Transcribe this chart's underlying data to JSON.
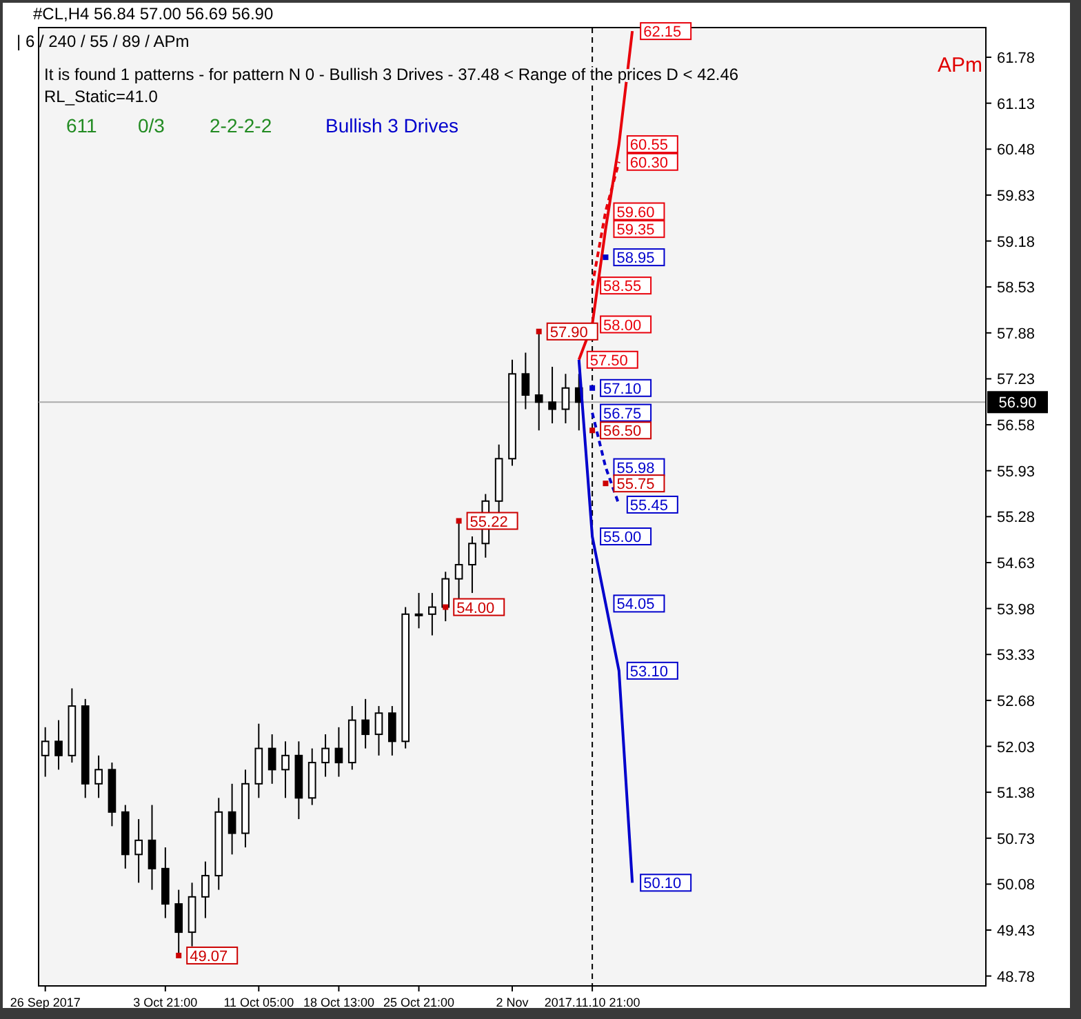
{
  "chart_data": {
    "type": "candlestick",
    "title": "#CL,H4  56.84 57.00 56.69 56.90",
    "subtitle": "| 6 / 240 / 55 / 89 / APm",
    "categories": [
      "26 Sep 2017",
      null,
      null,
      null,
      null,
      null,
      null,
      null,
      null,
      "3 Oct 21:00",
      null,
      null,
      null,
      null,
      null,
      null,
      "11 Oct 05:00",
      null,
      null,
      null,
      null,
      null,
      "18 Oct 13:00",
      null,
      null,
      null,
      null,
      null,
      "25 Oct 21:00",
      null,
      null,
      null,
      null,
      null,
      null,
      "2 Nov",
      null,
      null,
      null,
      null,
      null,
      "2017.11.10 21:00",
      null,
      null,
      null,
      null,
      null,
      null,
      null,
      null,
      null,
      null,
      null,
      null,
      null,
      null,
      null,
      null,
      null,
      null,
      null,
      null,
      null,
      null,
      null,
      null,
      null,
      null,
      null,
      null,
      null
    ],
    "ohlc": [
      [
        51.9,
        52.3,
        51.6,
        52.1
      ],
      [
        52.1,
        52.4,
        51.7,
        51.9
      ],
      [
        51.9,
        52.85,
        51.8,
        52.6
      ],
      [
        52.6,
        52.7,
        51.3,
        51.5
      ],
      [
        51.5,
        51.9,
        51.3,
        51.7
      ],
      [
        51.7,
        51.8,
        50.9,
        51.1
      ],
      [
        51.1,
        51.2,
        50.3,
        50.5
      ],
      [
        50.5,
        51.0,
        50.1,
        50.7
      ],
      [
        50.7,
        51.2,
        50.0,
        50.3
      ],
      [
        50.3,
        50.6,
        49.6,
        49.8
      ],
      [
        49.8,
        50.0,
        49.07,
        49.4
      ],
      [
        49.4,
        50.1,
        49.2,
        49.9
      ],
      [
        49.9,
        50.4,
        49.6,
        50.2
      ],
      [
        50.2,
        51.3,
        50.0,
        51.1
      ],
      [
        51.1,
        51.5,
        50.5,
        50.8
      ],
      [
        50.8,
        51.7,
        50.6,
        51.5
      ],
      [
        51.5,
        52.35,
        51.3,
        52.0
      ],
      [
        52.0,
        52.2,
        51.5,
        51.7
      ],
      [
        51.7,
        52.1,
        51.3,
        51.9
      ],
      [
        51.9,
        52.1,
        51.0,
        51.3
      ],
      [
        51.3,
        52.0,
        51.2,
        51.8
      ],
      [
        51.8,
        52.2,
        51.6,
        52.0
      ],
      [
        52.0,
        52.3,
        51.6,
        51.8
      ],
      [
        51.8,
        52.6,
        51.7,
        52.4
      ],
      [
        52.4,
        52.7,
        52.0,
        52.2
      ],
      [
        52.2,
        52.6,
        51.9,
        52.5
      ],
      [
        52.5,
        52.6,
        51.9,
        52.1
      ],
      [
        52.1,
        54.0,
        52.0,
        53.9
      ],
      [
        53.9,
        54.2,
        53.7,
        53.9
      ],
      [
        53.9,
        54.2,
        53.6,
        54.0
      ],
      [
        54.0,
        54.5,
        53.8,
        54.4
      ],
      [
        54.4,
        55.22,
        54.1,
        54.6
      ],
      [
        54.6,
        55.0,
        54.2,
        54.9
      ],
      [
        54.9,
        55.6,
        54.7,
        55.5
      ],
      [
        55.5,
        56.3,
        55.3,
        56.1
      ],
      [
        56.1,
        57.5,
        56.0,
        57.3
      ],
      [
        57.3,
        57.6,
        56.8,
        57.0
      ],
      [
        57.0,
        57.9,
        56.5,
        56.9
      ],
      [
        56.9,
        57.4,
        56.6,
        56.8
      ],
      [
        56.8,
        57.3,
        56.6,
        57.1
      ],
      [
        57.1,
        57.3,
        56.5,
        56.9
      ],
      null,
      null,
      null,
      null,
      null,
      null,
      null,
      null,
      null,
      null,
      null,
      null,
      null,
      null,
      null,
      null,
      null,
      null,
      null,
      null,
      null,
      null,
      null,
      null,
      null,
      null,
      null,
      null,
      null,
      null
    ],
    "series": [
      {
        "type": "line",
        "color": "#e8000b",
        "values": [
          null,
          null,
          null,
          null,
          null,
          null,
          null,
          null,
          null,
          null,
          null,
          null,
          null,
          null,
          null,
          null,
          null,
          null,
          null,
          null,
          null,
          null,
          null,
          null,
          null,
          null,
          null,
          null,
          null,
          null,
          null,
          null,
          null,
          null,
          null,
          null,
          null,
          null,
          null,
          null,
          57.5,
          58.0,
          59.35,
          60.55,
          62.15,
          null,
          null,
          null,
          null,
          null,
          null,
          null,
          null,
          null,
          null,
          null,
          null,
          null,
          null,
          null,
          null,
          null,
          null,
          null,
          null,
          null,
          null,
          null,
          null,
          null,
          null
        ],
        "value_labels": [
          null,
          null,
          null,
          null,
          null,
          null,
          null,
          null,
          null,
          null,
          null,
          null,
          null,
          null,
          null,
          null,
          null,
          null,
          null,
          null,
          null,
          null,
          null,
          null,
          null,
          null,
          null,
          null,
          null,
          null,
          null,
          null,
          null,
          null,
          null,
          null,
          null,
          null,
          null,
          null,
          "57.50",
          "58.00",
          "59.35",
          "60.55",
          "62.15",
          null,
          null,
          null,
          null,
          null,
          null,
          null,
          null,
          null,
          null,
          null,
          null,
          null,
          null,
          null,
          null,
          null,
          null,
          null,
          null,
          null,
          null,
          null,
          null,
          null,
          null
        ]
      },
      {
        "type": "line",
        "color": "#e8000b",
        "line_style": "dashed",
        "values": [
          null,
          null,
          null,
          null,
          null,
          null,
          null,
          null,
          null,
          null,
          null,
          null,
          null,
          null,
          null,
          null,
          null,
          null,
          null,
          null,
          null,
          null,
          null,
          null,
          null,
          null,
          null,
          null,
          null,
          null,
          null,
          null,
          null,
          null,
          null,
          null,
          null,
          null,
          null,
          null,
          null,
          58.55,
          59.6,
          60.3,
          null,
          null,
          null,
          null,
          null,
          null,
          null,
          null,
          null,
          null,
          null,
          null,
          null,
          null,
          null,
          null,
          null,
          null,
          null,
          null,
          null,
          null,
          null,
          null,
          null,
          null,
          null
        ],
        "value_labels": [
          null,
          null,
          null,
          null,
          null,
          null,
          null,
          null,
          null,
          null,
          null,
          null,
          null,
          null,
          null,
          null,
          null,
          null,
          null,
          null,
          null,
          null,
          null,
          null,
          null,
          null,
          null,
          null,
          null,
          null,
          null,
          null,
          null,
          null,
          null,
          null,
          null,
          null,
          null,
          null,
          null,
          "58.55",
          "59.60",
          "60.30",
          null,
          null,
          null,
          null,
          null,
          null,
          null,
          null,
          null,
          null,
          null,
          null,
          null,
          null,
          null,
          null,
          null,
          null,
          null,
          null,
          null,
          null,
          null,
          null,
          null,
          null,
          null
        ]
      },
      {
        "type": "scatter",
        "marker": "square",
        "color": "#0000cc",
        "values": [
          null,
          null,
          null,
          null,
          null,
          null,
          null,
          null,
          null,
          null,
          null,
          null,
          null,
          null,
          null,
          null,
          null,
          null,
          null,
          null,
          null,
          null,
          null,
          null,
          null,
          null,
          null,
          null,
          null,
          null,
          null,
          null,
          null,
          null,
          null,
          null,
          null,
          null,
          null,
          null,
          null,
          57.1,
          58.95,
          null,
          null,
          null,
          null,
          null,
          null,
          null,
          null,
          null,
          null,
          null,
          null,
          null,
          null,
          null,
          null,
          null,
          null,
          null,
          null,
          null,
          null,
          null,
          null,
          null,
          null,
          null,
          null
        ],
        "value_labels": [
          null,
          null,
          null,
          null,
          null,
          null,
          null,
          null,
          null,
          null,
          null,
          null,
          null,
          null,
          null,
          null,
          null,
          null,
          null,
          null,
          null,
          null,
          null,
          null,
          null,
          null,
          null,
          null,
          null,
          null,
          null,
          null,
          null,
          null,
          null,
          null,
          null,
          null,
          null,
          null,
          null,
          "57.10",
          "58.95",
          null,
          null,
          null,
          null,
          null,
          null,
          null,
          null,
          null,
          null,
          null,
          null,
          null,
          null,
          null,
          null,
          null,
          null,
          null,
          null,
          null,
          null,
          null,
          null,
          null,
          null,
          null,
          null
        ]
      },
      {
        "type": "line",
        "color": "#0000cc",
        "values": [
          null,
          null,
          null,
          null,
          null,
          null,
          null,
          null,
          null,
          null,
          null,
          null,
          null,
          null,
          null,
          null,
          null,
          null,
          null,
          null,
          null,
          null,
          null,
          null,
          null,
          null,
          null,
          null,
          null,
          null,
          null,
          null,
          null,
          null,
          null,
          null,
          null,
          null,
          null,
          null,
          57.5,
          55.0,
          54.05,
          53.1,
          50.1,
          null,
          null,
          null,
          null,
          null,
          null,
          null,
          null,
          null,
          null,
          null,
          null,
          null,
          null,
          null,
          null,
          null,
          null,
          null,
          null,
          null,
          null,
          null,
          null,
          null,
          null
        ],
        "value_labels": [
          null,
          null,
          null,
          null,
          null,
          null,
          null,
          null,
          null,
          null,
          null,
          null,
          null,
          null,
          null,
          null,
          null,
          null,
          null,
          null,
          null,
          null,
          null,
          null,
          null,
          null,
          null,
          null,
          null,
          null,
          null,
          null,
          null,
          null,
          null,
          null,
          null,
          null,
          null,
          null,
          null,
          "55.00",
          "54.05",
          "53.10",
          "50.10",
          null,
          null,
          null,
          null,
          null,
          null,
          null,
          null,
          null,
          null,
          null,
          null,
          null,
          null,
          null,
          null,
          null,
          null,
          null,
          null,
          null,
          null,
          null,
          null,
          null,
          null
        ]
      },
      {
        "type": "line",
        "color": "#0000cc",
        "line_style": "dashed",
        "values": [
          null,
          null,
          null,
          null,
          null,
          null,
          null,
          null,
          null,
          null,
          null,
          null,
          null,
          null,
          null,
          null,
          null,
          null,
          null,
          null,
          null,
          null,
          null,
          null,
          null,
          null,
          null,
          null,
          null,
          null,
          null,
          null,
          null,
          null,
          null,
          null,
          null,
          null,
          null,
          null,
          null,
          56.75,
          55.98,
          55.45,
          null,
          null,
          null,
          null,
          null,
          null,
          null,
          null,
          null,
          null,
          null,
          null,
          null,
          null,
          null,
          null,
          null,
          null,
          null,
          null,
          null,
          null,
          null,
          null,
          null,
          null,
          null
        ],
        "value_labels": [
          null,
          null,
          null,
          null,
          null,
          null,
          null,
          null,
          null,
          null,
          null,
          null,
          null,
          null,
          null,
          null,
          null,
          null,
          null,
          null,
          null,
          null,
          null,
          null,
          null,
          null,
          null,
          null,
          null,
          null,
          null,
          null,
          null,
          null,
          null,
          null,
          null,
          null,
          null,
          null,
          null,
          "56.75",
          "55.98",
          "55.45",
          null,
          null,
          null,
          null,
          null,
          null,
          null,
          null,
          null,
          null,
          null,
          null,
          null,
          null,
          null,
          null,
          null,
          null,
          null,
          null,
          null,
          null,
          null,
          null,
          null,
          null,
          null
        ]
      },
      {
        "type": "scatter",
        "marker": "square",
        "color": "#cc0000",
        "values": [
          null,
          null,
          null,
          null,
          null,
          null,
          null,
          null,
          null,
          null,
          49.07,
          null,
          null,
          null,
          null,
          null,
          null,
          null,
          null,
          null,
          null,
          null,
          null,
          null,
          null,
          null,
          null,
          null,
          null,
          null,
          54.0,
          55.22,
          null,
          null,
          null,
          null,
          null,
          57.9,
          null,
          null,
          null,
          56.5,
          55.75,
          null,
          null,
          null,
          null,
          null,
          null,
          null,
          null,
          null,
          null,
          null,
          null,
          null,
          null,
          null,
          null,
          null,
          null,
          null,
          null,
          null,
          null,
          null,
          null,
          null,
          null,
          null,
          null
        ],
        "value_labels": [
          null,
          null,
          null,
          null,
          null,
          null,
          null,
          null,
          null,
          null,
          "49.07",
          null,
          null,
          null,
          null,
          null,
          null,
          null,
          null,
          null,
          null,
          null,
          null,
          null,
          null,
          null,
          null,
          null,
          null,
          null,
          "54.00",
          "55.22",
          null,
          null,
          null,
          null,
          null,
          "57.90",
          null,
          null,
          null,
          "56.50",
          "55.75",
          null,
          null,
          null,
          null,
          null,
          null,
          null,
          null,
          null,
          null,
          null,
          null,
          null,
          null,
          null,
          null,
          null,
          null,
          null,
          null,
          null,
          null,
          null,
          null,
          null,
          null,
          null,
          null
        ]
      }
    ],
    "ylim": [
      48.64,
      62.2
    ],
    "yticks": [
      48.78,
      49.43,
      50.08,
      50.73,
      51.38,
      52.03,
      52.68,
      53.33,
      53.98,
      54.63,
      55.28,
      55.93,
      56.58,
      57.23,
      57.88,
      58.53,
      59.18,
      59.83,
      60.48,
      61.13,
      61.78
    ],
    "ref_lines": [
      {
        "axis": "y",
        "value": 56.9,
        "label": "56.90",
        "color": "#aaaaaa"
      },
      {
        "axis": "x",
        "value": "2017.11.10 21:00",
        "line_style": "dashed",
        "color": "#000000"
      }
    ],
    "annotations": [
      "It is found 1 patterns  -  for pattern N 0 - Bullish 3 Drives - 37.48 < Range of the prices D < 42.46",
      "RL_Static=41.0",
      "611",
      "0/3",
      "2-2-2-2",
      "Bullish 3 Drives",
      "APm"
    ]
  }
}
